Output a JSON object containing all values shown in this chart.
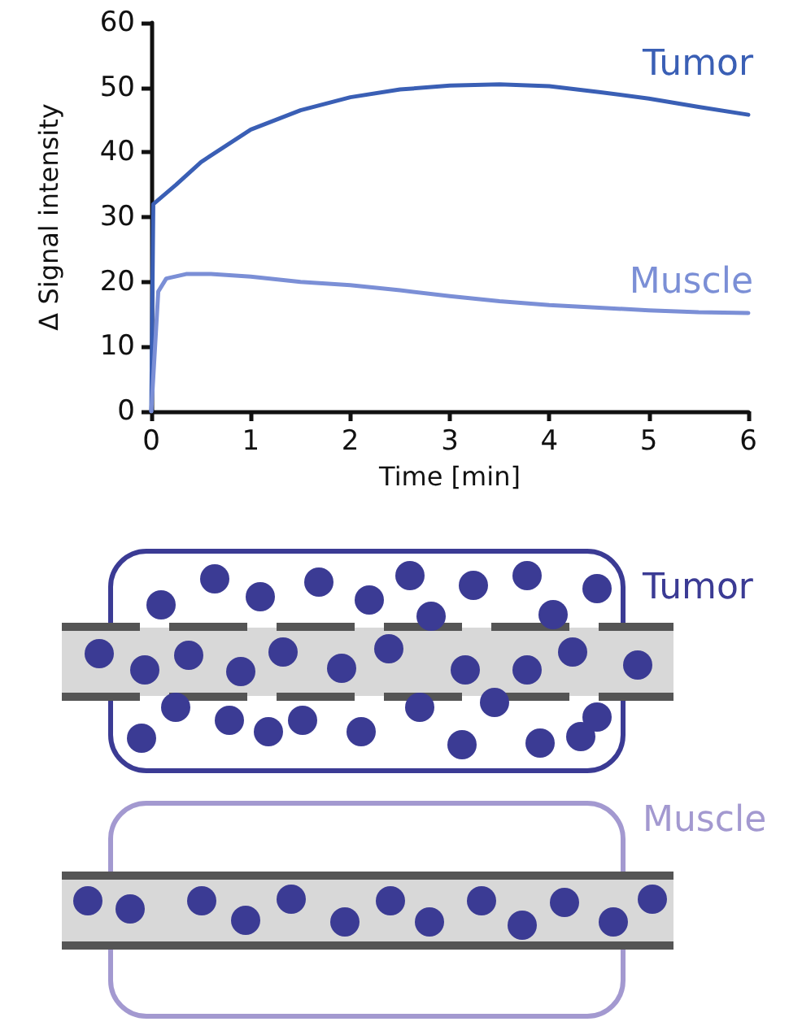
{
  "chart_data": {
    "type": "line",
    "xlabel": "Time [min]",
    "ylabel": "Δ Signal intensity",
    "xlim": [
      0,
      6
    ],
    "xticks": [
      0,
      1,
      2,
      3,
      4,
      5,
      6
    ],
    "ylim": [
      0,
      60
    ],
    "yticks": [
      0,
      10,
      20,
      30,
      40,
      50,
      60
    ],
    "grid": false,
    "legend": false,
    "marker": "none",
    "line_style": "solid",
    "annotations": [
      "Tumor",
      "Muscle"
    ],
    "series": [
      {
        "name": "Tumor",
        "color": "#3a5fb5",
        "x": [
          0,
          0.02,
          0.25,
          0.5,
          1,
          1.5,
          2,
          2.5,
          3,
          3.5,
          4,
          4.5,
          5,
          5.5,
          6
        ],
        "values": [
          0,
          32,
          35,
          38.5,
          43.5,
          46.5,
          48.5,
          49.7,
          50.3,
          50.5,
          50.2,
          49.3,
          48.3,
          47,
          45.8
        ]
      },
      {
        "name": "Muscle",
        "color": "#7b8fd6",
        "x": [
          0,
          0.07,
          0.15,
          0.35,
          0.6,
          1,
          1.5,
          2,
          2.5,
          3,
          3.5,
          4,
          4.5,
          5,
          5.5,
          6
        ],
        "values": [
          0,
          18.5,
          20.5,
          21.2,
          21.2,
          20.8,
          20,
          19.5,
          18.7,
          17.8,
          17,
          16.4,
          16,
          15.6,
          15.3,
          15.2
        ]
      }
    ]
  }
}
